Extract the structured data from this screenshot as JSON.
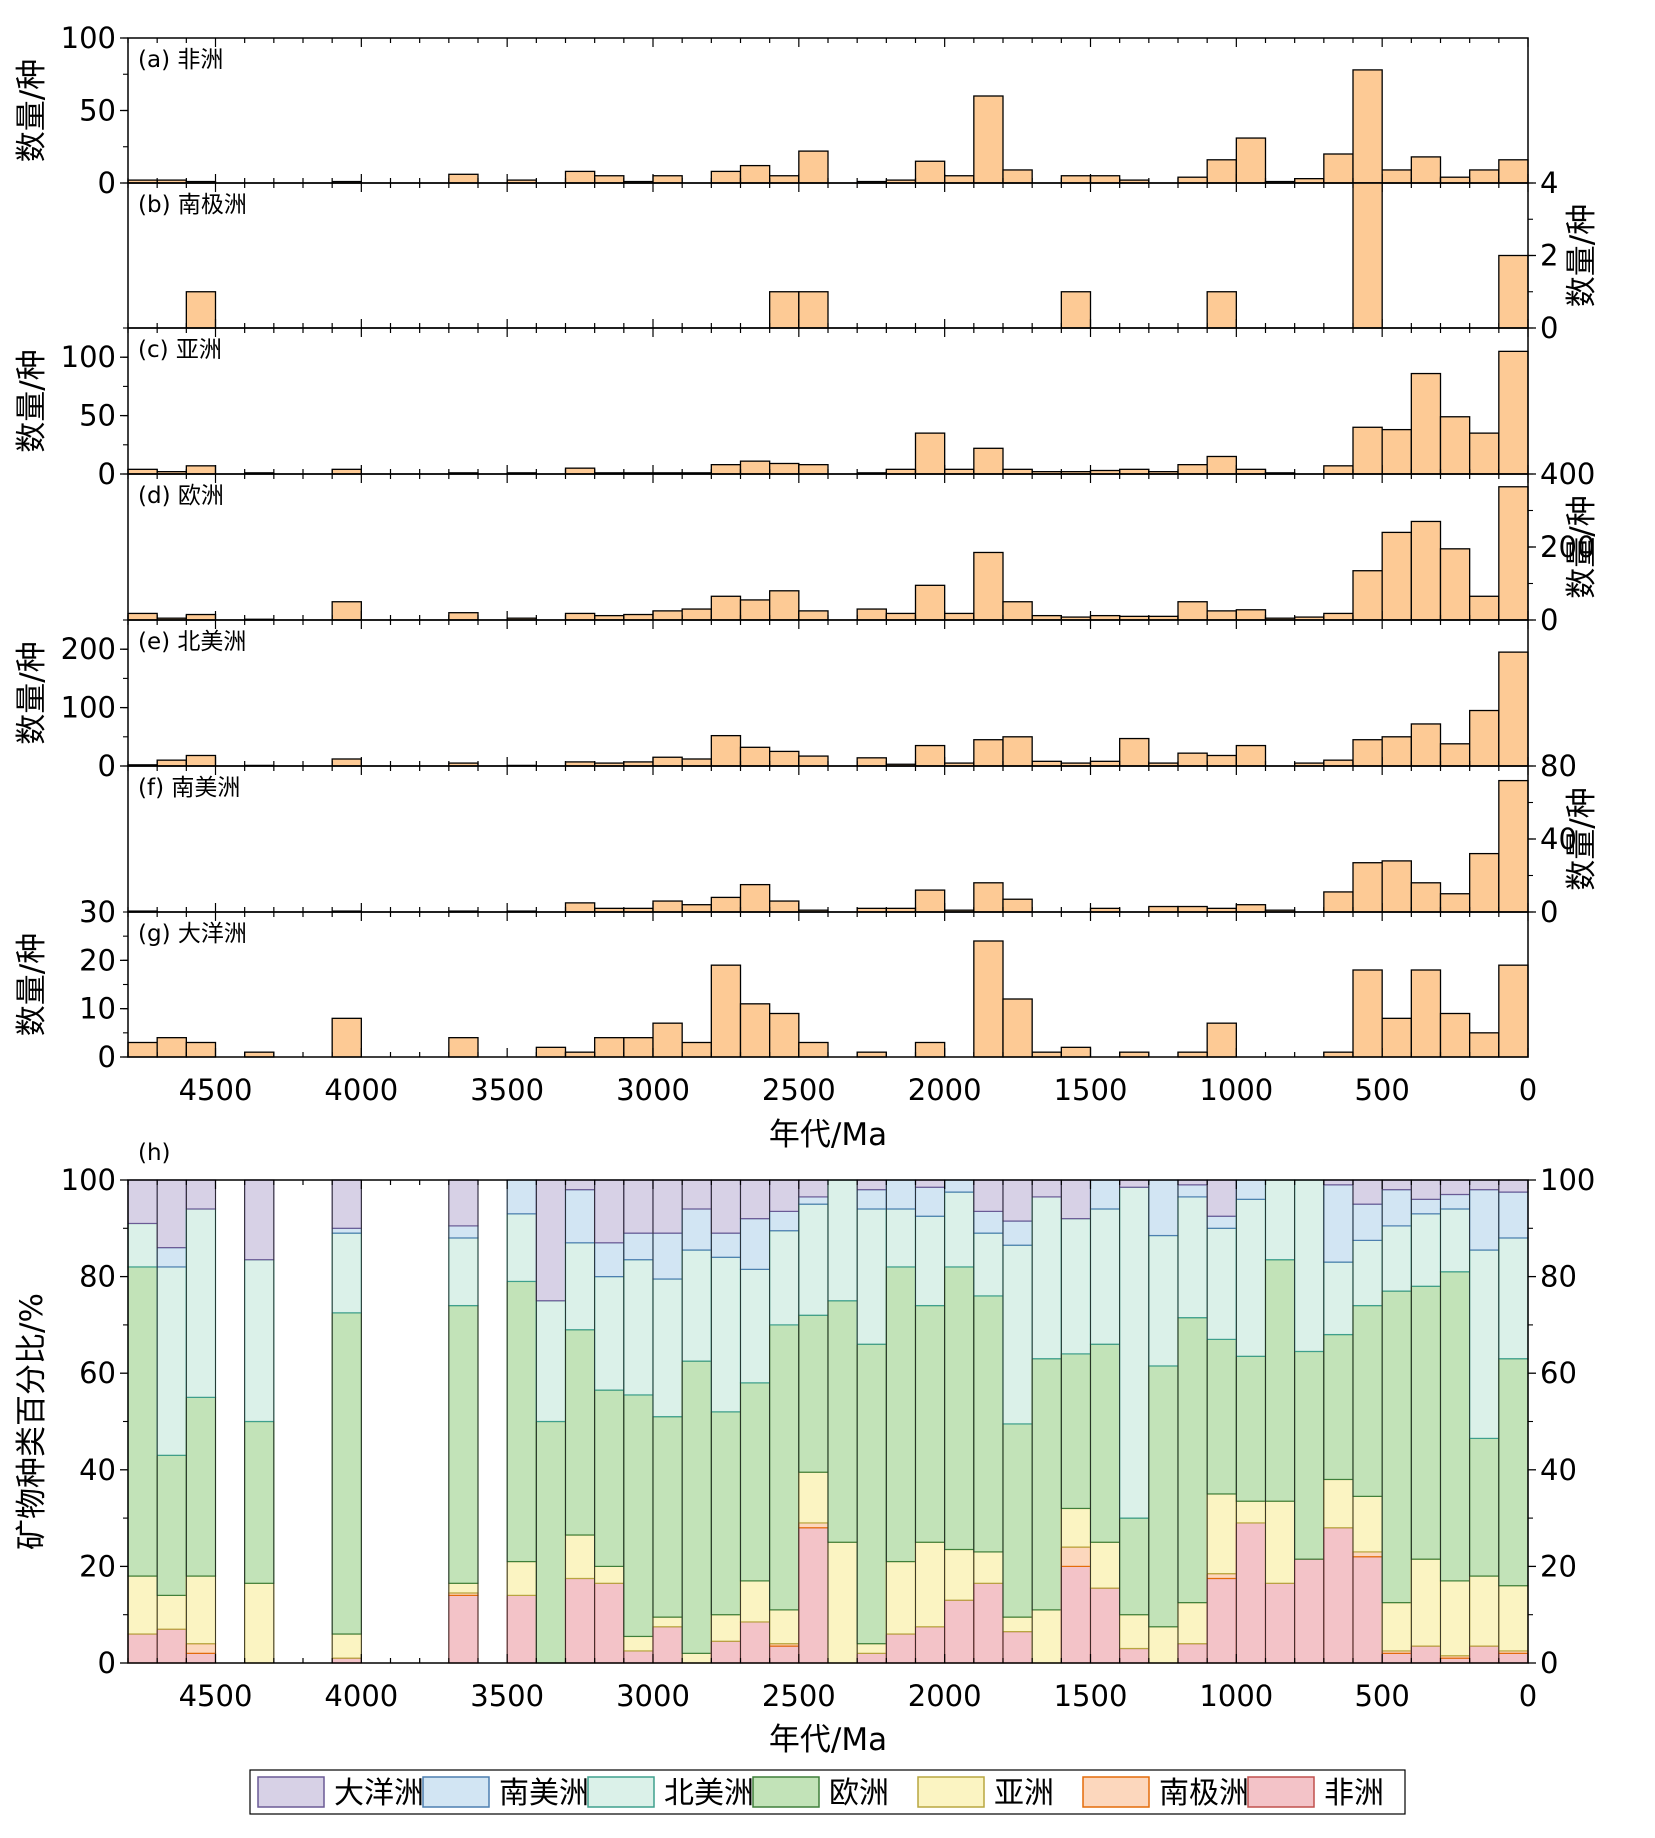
{
  "colors": {
    "bar_fill": "#fdca95",
    "stack": {
      "非洲": "#f3c3c8",
      "南极洲": "#fcd7bd",
      "亚洲": "#fbf4c2",
      "欧洲": "#c2e3b8",
      "北美洲": "#dbf1e9",
      "南美洲": "#d2e5f3",
      "大洋洲": "#d7d1e6"
    },
    "stack_edge": {
      "非洲": "#c0504d",
      "南极洲": "#e46c0a",
      "亚洲": "#b8a640",
      "欧洲": "#3f7f3a",
      "北美洲": "#3ea08d",
      "南美洲": "#4c7fb0",
      "大洋洲": "#6a5a95"
    }
  },
  "x_axis": {
    "label": "年代/Ma",
    "ticks": [
      "4500",
      "4000",
      "3500",
      "3000",
      "2500",
      "2000",
      "1500",
      "1000",
      "500",
      "0"
    ]
  },
  "chart_data": [
    {
      "type": "bar",
      "panel": "(a) 非洲",
      "ylabel": "数量/种",
      "ylabel_side": "left",
      "ylim": [
        0,
        100
      ],
      "yticks": [
        "0",
        "50",
        "100"
      ],
      "x": [
        4750,
        4650,
        4550,
        4450,
        4350,
        4250,
        4150,
        4050,
        3950,
        3850,
        3750,
        3650,
        3550,
        3450,
        3350,
        3250,
        3150,
        3050,
        2950,
        2850,
        2750,
        2650,
        2550,
        2450,
        2350,
        2250,
        2150,
        2050,
        1950,
        1850,
        1750,
        1650,
        1550,
        1450,
        1350,
        1250,
        1150,
        1050,
        950,
        850,
        750,
        650,
        550,
        450,
        350,
        250,
        150,
        50
      ],
      "values": [
        2,
        2,
        1,
        0,
        0,
        0,
        0,
        1,
        0,
        0,
        0,
        6,
        0,
        2,
        0,
        8,
        5,
        1,
        5,
        0,
        8,
        12,
        5,
        22,
        0,
        1,
        2,
        15,
        5,
        60,
        9,
        0,
        5,
        5,
        2,
        0,
        4,
        16,
        31,
        1,
        3,
        20,
        78,
        9,
        18,
        4,
        9,
        16
      ]
    },
    {
      "type": "bar",
      "panel": "(b) 南极洲",
      "ylabel": "数量/种",
      "ylabel_side": "right",
      "ylim": [
        0,
        4
      ],
      "yticks": [
        "0",
        "2",
        "4"
      ],
      "values": [
        0,
        0,
        1,
        0,
        0,
        0,
        0,
        0,
        0,
        0,
        0,
        0,
        0,
        0,
        0,
        0,
        0,
        0,
        0,
        0,
        0,
        0,
        1,
        1,
        0,
        0,
        0,
        0,
        0,
        0,
        0,
        0,
        1,
        0,
        0,
        0,
        0,
        1,
        0,
        0,
        0,
        0,
        4,
        0,
        0,
        0,
        0,
        2
      ]
    },
    {
      "type": "bar",
      "panel": "(c) 亚洲",
      "ylabel": "数量/种",
      "ylabel_side": "left",
      "ylim": [
        0,
        125
      ],
      "yticks": [
        "0",
        "50",
        "100"
      ],
      "values": [
        4,
        2,
        7,
        0,
        1,
        0,
        0,
        4,
        0,
        0,
        0,
        1,
        0,
        1,
        0,
        5,
        1,
        1,
        1,
        1,
        8,
        11,
        9,
        8,
        0,
        1,
        4,
        35,
        4,
        22,
        4,
        2,
        2,
        3,
        4,
        2,
        8,
        15,
        4,
        1,
        0,
        7,
        40,
        38,
        86,
        49,
        35,
        105
      ]
    },
    {
      "type": "bar",
      "panel": "(d) 欧洲",
      "ylabel": "数量/种",
      "ylabel_side": "right",
      "ylim": [
        0,
        400
      ],
      "yticks": [
        "0",
        "200",
        "400"
      ],
      "values": [
        18,
        5,
        15,
        0,
        2,
        0,
        0,
        50,
        0,
        0,
        0,
        20,
        0,
        5,
        0,
        18,
        12,
        15,
        25,
        30,
        65,
        55,
        80,
        25,
        0,
        30,
        18,
        95,
        18,
        185,
        50,
        12,
        8,
        12,
        10,
        10,
        50,
        25,
        28,
        5,
        8,
        18,
        135,
        240,
        270,
        195,
        65,
        365
      ]
    },
    {
      "type": "bar",
      "panel": "(e) 北美洲",
      "ylabel": "数量/种",
      "ylabel_side": "left",
      "ylim": [
        0,
        250
      ],
      "yticks": [
        "0",
        "100",
        "200"
      ],
      "values": [
        2,
        10,
        18,
        0,
        1,
        0,
        0,
        12,
        0,
        0,
        0,
        5,
        0,
        1,
        0,
        7,
        5,
        7,
        15,
        12,
        52,
        32,
        25,
        17,
        0,
        14,
        3,
        35,
        5,
        45,
        50,
        8,
        5,
        8,
        47,
        5,
        22,
        18,
        35,
        0,
        5,
        10,
        45,
        50,
        72,
        38,
        95,
        195
      ]
    },
    {
      "type": "bar",
      "panel": "(f) 南美洲",
      "ylabel": "数量/种",
      "ylabel_side": "right",
      "ylim": [
        0,
        80
      ],
      "yticks": [
        "0",
        "40",
        "80"
      ],
      "left_tick_text": "30",
      "values": [
        0.5,
        0,
        0,
        0,
        0,
        0,
        0,
        0.5,
        0,
        0,
        0,
        0.5,
        0,
        0.5,
        0,
        5,
        2,
        2,
        6,
        4,
        8,
        15,
        6,
        1,
        0,
        2,
        2,
        12,
        1,
        16,
        7,
        0,
        0,
        2,
        0,
        3,
        3,
        2,
        4,
        1,
        0,
        11,
        27,
        28,
        16,
        10,
        32,
        72
      ]
    },
    {
      "type": "bar",
      "panel": "(g) 大洋洲",
      "ylabel": "数量/种",
      "ylabel_side": "left",
      "ylim": [
        0,
        30
      ],
      "yticks": [
        "0",
        "10",
        "20"
      ],
      "values": [
        3,
        4,
        3,
        0,
        1,
        0,
        0,
        8,
        0,
        0,
        0,
        4,
        0,
        0,
        2,
        1,
        4,
        4,
        7,
        3,
        19,
        11,
        9,
        3,
        0,
        1,
        0,
        3,
        0,
        24,
        12,
        1,
        2,
        0,
        1,
        0,
        1,
        7,
        0,
        0,
        0,
        1,
        18,
        8,
        18,
        9,
        5,
        19
      ]
    },
    {
      "type": "bar",
      "stacked": true,
      "panel": "(h)",
      "ylabel": "矿物种类百分比/%",
      "ylim": [
        0,
        100
      ],
      "yticks": [
        "0",
        "20",
        "40",
        "60",
        "80",
        "100"
      ],
      "legend_order": [
        "大洋洲",
        "南美洲",
        "北美洲",
        "欧洲",
        "亚洲",
        "南极洲",
        "非洲"
      ],
      "stack_order": [
        "非洲",
        "南极洲",
        "亚洲",
        "欧洲",
        "北美洲",
        "南美洲",
        "大洋洲"
      ],
      "x": [
        4750,
        4650,
        4550,
        4450,
        4350,
        4250,
        4150,
        4050,
        3950,
        3850,
        3750,
        3650,
        3550,
        3450,
        3350,
        3250,
        3150,
        3050,
        2950,
        2850,
        2750,
        2650,
        2550,
        2450,
        2350,
        2250,
        2150,
        2050,
        1950,
        1850,
        1750,
        1650,
        1550,
        1450,
        1350,
        1250,
        1150,
        1050,
        950,
        850,
        750,
        650,
        550,
        450,
        350,
        250,
        150,
        50
      ],
      "cumulative": [
        [
          6,
          6,
          18,
          82,
          91,
          91,
          100
        ],
        [
          7,
          7,
          14,
          43,
          82,
          86,
          100
        ],
        [
          2,
          4,
          18,
          55,
          94,
          94,
          100
        ],
        null,
        [
          0,
          0,
          16.5,
          50,
          83.5,
          83.5,
          100
        ],
        null,
        null,
        [
          1,
          1,
          6,
          72.5,
          89,
          90,
          100
        ],
        null,
        null,
        null,
        [
          14,
          14.5,
          16.5,
          74,
          88,
          90.5,
          100
        ],
        null,
        [
          14,
          14,
          21,
          79,
          93,
          100,
          100
        ],
        [
          0,
          0,
          0,
          50,
          75,
          75,
          100
        ],
        [
          17.5,
          17.5,
          26.5,
          69,
          87,
          98,
          100
        ],
        [
          16.5,
          16.5,
          20,
          56.5,
          80,
          87,
          100
        ],
        [
          2.5,
          2.5,
          5.5,
          55.5,
          83.5,
          89,
          100
        ],
        [
          7.5,
          7.5,
          9.5,
          51,
          79.5,
          89,
          100
        ],
        [
          0,
          0,
          2,
          62.5,
          85.5,
          94,
          100
        ],
        [
          4.5,
          4.5,
          10,
          52,
          84,
          89,
          100
        ],
        [
          8.5,
          8.5,
          17,
          58,
          81.5,
          92,
          100
        ],
        [
          3.5,
          4,
          11,
          70,
          89.5,
          93.5,
          100
        ],
        [
          28,
          29,
          39.5,
          72,
          95,
          96.5,
          100
        ],
        [
          0,
          0,
          25,
          75,
          100,
          100,
          100
        ],
        [
          2,
          2,
          4,
          66,
          94,
          98,
          100
        ],
        [
          6,
          6,
          21,
          82,
          94,
          100,
          100
        ],
        [
          7.5,
          7.5,
          25,
          74,
          92.5,
          98.5,
          100
        ],
        [
          13,
          13,
          23.5,
          82,
          97.5,
          100,
          100
        ],
        [
          16.5,
          16.5,
          23,
          76,
          89,
          93.5,
          100
        ],
        [
          6.5,
          6.5,
          9.5,
          49.5,
          86.5,
          91.5,
          100
        ],
        [
          0,
          0,
          11,
          63,
          96.5,
          96.5,
          100
        ],
        [
          20,
          24,
          32,
          64,
          92,
          92,
          100
        ],
        [
          15.5,
          15.5,
          25,
          66,
          94,
          100,
          100
        ],
        [
          3,
          3,
          10,
          30,
          98.5,
          98.5,
          100
        ],
        [
          0,
          0,
          7.5,
          61.5,
          88.5,
          100,
          100
        ],
        [
          4,
          4,
          12.5,
          71.5,
          96.5,
          99,
          100
        ],
        [
          17.5,
          18.5,
          35,
          67,
          90,
          92.5,
          100
        ],
        [
          29,
          29,
          33.5,
          63.5,
          96,
          100,
          100
        ],
        [
          16.5,
          16.5,
          33.5,
          83.5,
          100,
          100,
          100
        ],
        [
          21.5,
          21.5,
          21.5,
          64.5,
          100,
          100,
          100
        ],
        [
          28,
          28,
          38,
          68,
          83,
          99,
          100
        ],
        [
          22,
          23,
          34.5,
          74,
          87.5,
          95,
          100
        ],
        [
          2,
          2.5,
          12.5,
          77,
          90.5,
          98,
          100
        ],
        [
          3.5,
          3.5,
          21.5,
          78,
          93,
          96,
          100
        ],
        [
          1,
          1.5,
          17,
          81,
          94,
          97,
          100
        ],
        [
          3.5,
          3.5,
          18,
          46.5,
          85.5,
          98,
          100
        ],
        [
          2,
          2.5,
          16,
          63,
          88,
          97.5,
          100
        ]
      ]
    }
  ]
}
